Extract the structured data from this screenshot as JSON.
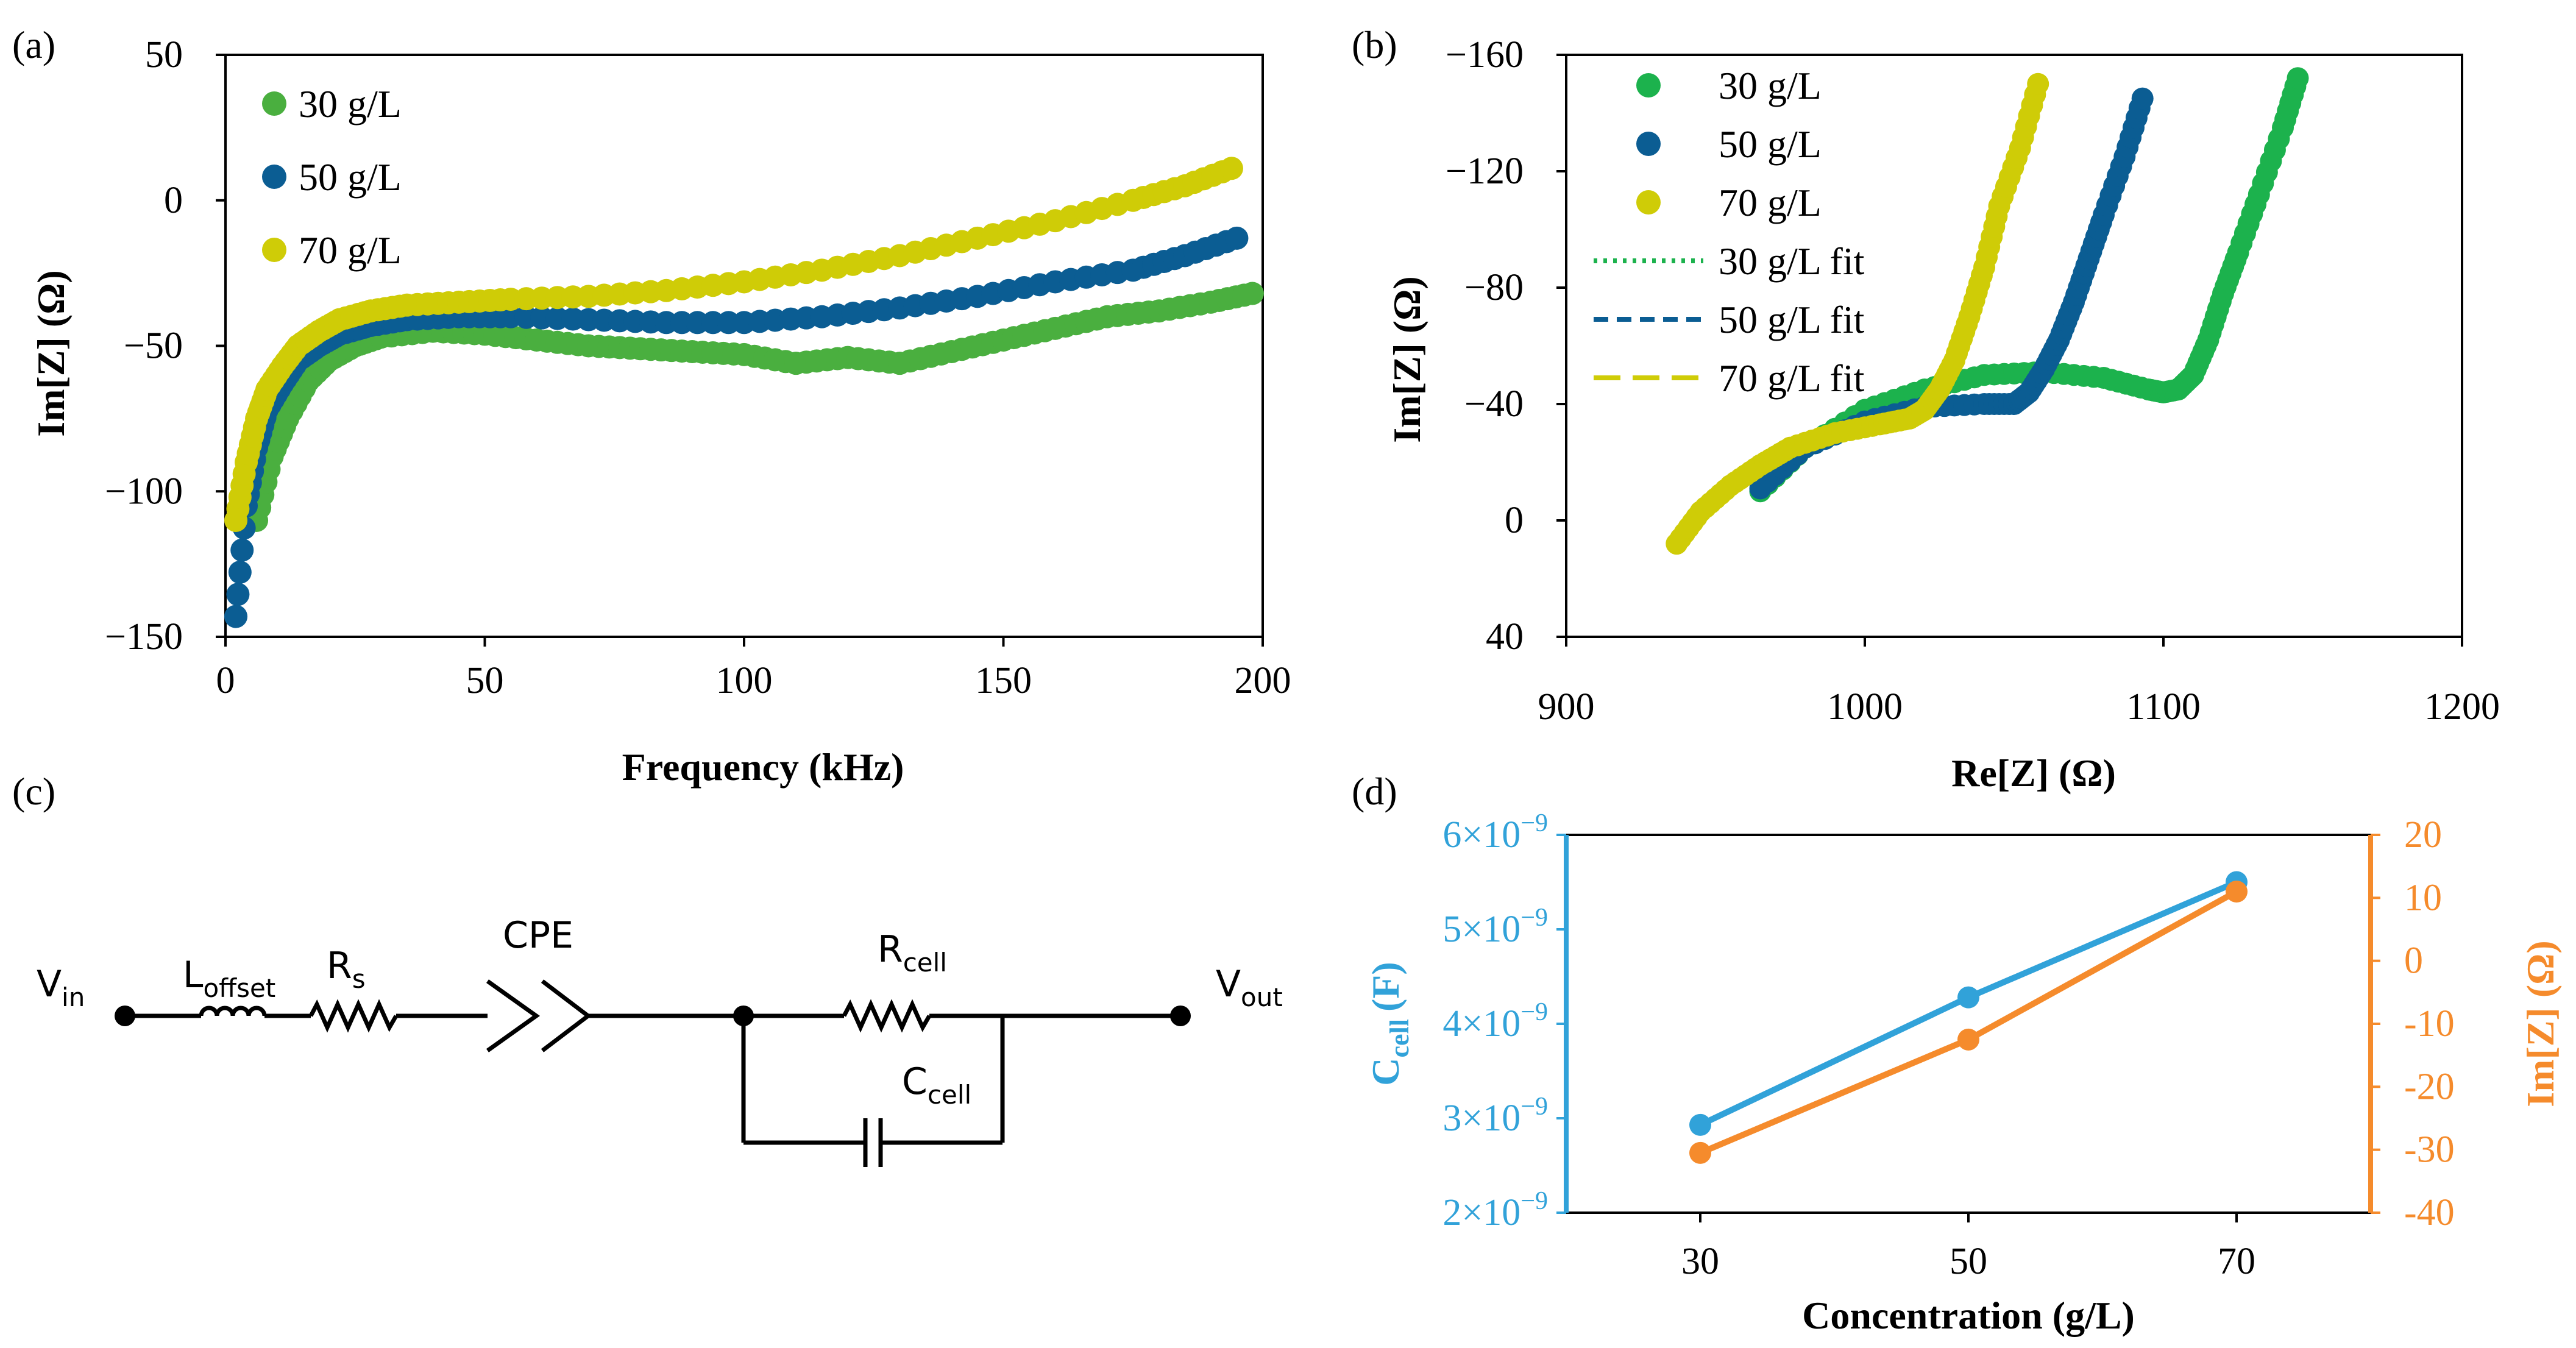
{
  "colors": {
    "green": "#4aaf3f",
    "green_b": "#1cb24d",
    "blue": "#0b5d93",
    "yellow": "#cfcc07",
    "cyan": "#31a2d9",
    "orange": "#f58b2c"
  },
  "panels": {
    "a": {
      "label": "(a)"
    },
    "b": {
      "label": "(b)"
    },
    "c": {
      "label": "(c)"
    },
    "d": {
      "label": "(d)"
    }
  },
  "circuit": {
    "v_in": "V",
    "v_in_sub": "in",
    "l_offset": "L",
    "l_offset_sub": "offset",
    "r_s": "R",
    "r_s_sub": "s",
    "cpe": "CPE",
    "r_cell": "R",
    "r_cell_sub": "cell",
    "c_cell": "C",
    "c_cell_sub": "cell",
    "v_out": "V",
    "v_out_sub": "out"
  },
  "chart_data": [
    {
      "id": "a",
      "type": "scatter",
      "xlabel": "Frequency (kHz)",
      "ylabel": "Im[Z] (Ω)",
      "xlim": [
        0,
        200
      ],
      "ylim": [
        -150,
        50
      ],
      "xticks": [
        "0",
        "50",
        "100",
        "150",
        "200"
      ],
      "yticks": [
        "50",
        "0",
        "−50",
        "−100",
        "−150"
      ],
      "legend_position": "top-left",
      "series": [
        {
          "name": "30 g/L",
          "color": "#4aaf3f",
          "x": [
            3,
            6,
            9,
            12,
            16,
            20,
            25,
            30,
            40,
            50,
            60,
            70,
            80,
            90,
            100,
            110,
            120,
            130,
            140,
            150,
            160,
            170,
            180,
            190,
            198
          ],
          "y": [
            -105,
            -110,
            -88,
            -75,
            -62,
            -55,
            -50,
            -47,
            -45,
            -46,
            -48,
            -50,
            -51,
            -52,
            -53,
            -56,
            -54,
            -56,
            -52,
            -48,
            -44,
            -40,
            -38,
            -35,
            -32
          ]
        },
        {
          "name": "50 g/L",
          "color": "#0b5d93",
          "x": [
            2,
            4,
            6,
            8,
            11,
            14,
            18,
            22,
            28,
            35,
            45,
            55,
            70,
            85,
            100,
            115,
            130,
            145,
            160,
            175,
            185,
            195
          ],
          "y": [
            -143,
            -105,
            -85,
            -72,
            -63,
            -55,
            -50,
            -46,
            -43,
            -41,
            -40,
            -40,
            -41,
            -42,
            -42,
            -40,
            -37,
            -33,
            -28,
            -24,
            -19,
            -13
          ]
        },
        {
          "name": "70 g/L",
          "color": "#cfcc07",
          "x": [
            2,
            4,
            6,
            8,
            11,
            14,
            18,
            22,
            28,
            35,
            45,
            55,
            70,
            85,
            100,
            115,
            130,
            145,
            160,
            175,
            185,
            194
          ],
          "y": [
            -110,
            -90,
            -75,
            -65,
            -57,
            -50,
            -45,
            -41,
            -38,
            -36,
            -35,
            -34,
            -33,
            -31,
            -28,
            -24,
            -19,
            -13,
            -7,
            0,
            5,
            11
          ]
        }
      ]
    },
    {
      "id": "b",
      "type": "scatter",
      "xlabel": "Re[Z] (Ω)",
      "ylabel": "Im[Z] (Ω)",
      "xlim": [
        900,
        1200
      ],
      "ylim": [
        40,
        -160
      ],
      "xticks": [
        "900",
        "1000",
        "1100",
        "1200"
      ],
      "yticks": [
        "−160",
        "−120",
        "−80",
        "−40",
        "0",
        "40"
      ],
      "legend_position": "top-left",
      "series": [
        {
          "name": "30 g/L",
          "color": "#1cb24d",
          "x": [
            965,
            980,
            1000,
            1020,
            1040,
            1060,
            1080,
            1095,
            1100,
            1105,
            1110,
            1115,
            1120,
            1125,
            1132,
            1140,
            1145
          ],
          "y": [
            -10,
            -25,
            -38,
            -45,
            -50,
            -51,
            -49,
            -45,
            -44,
            -45,
            -50,
            -62,
            -78,
            -92,
            -112,
            -135,
            -152
          ]
        },
        {
          "name": "50 g/L",
          "color": "#0b5d93",
          "x": [
            965,
            980,
            1000,
            1020,
            1040,
            1050,
            1055,
            1060,
            1065,
            1070,
            1075,
            1080,
            1087,
            1093
          ],
          "y": [
            -11,
            -25,
            -34,
            -39,
            -40,
            -40,
            -44,
            -52,
            -62,
            -75,
            -90,
            -105,
            -125,
            -145
          ]
        },
        {
          "name": "70 g/L",
          "color": "#cfcc07",
          "x": [
            937,
            945,
            955,
            965,
            975,
            990,
            1005,
            1015,
            1020,
            1025,
            1030,
            1035,
            1040,
            1045,
            1052,
            1058
          ],
          "y": [
            8,
            -3,
            -12,
            -19,
            -25,
            -30,
            -33,
            -35,
            -38,
            -45,
            -55,
            -70,
            -87,
            -108,
            -128,
            -150
          ]
        },
        {
          "name": "30 g/L fit",
          "color": "#1cb24d",
          "style": "dotted",
          "x": [
            1105,
            1115,
            1125,
            1135,
            1145
          ],
          "y": [
            -45,
            -62,
            -90,
            -120,
            -152
          ]
        },
        {
          "name": "50 g/L fit",
          "color": "#0b5d93",
          "style": "dashed",
          "x": [
            1055,
            1065,
            1075,
            1085,
            1093
          ],
          "y": [
            -44,
            -62,
            -90,
            -118,
            -145
          ]
        },
        {
          "name": "70 g/L fit",
          "color": "#cfcc07",
          "style": "longdash",
          "x": [
            1020,
            1030,
            1040,
            1050,
            1058
          ],
          "y": [
            -38,
            -55,
            -87,
            -118,
            -150
          ]
        }
      ]
    },
    {
      "id": "d",
      "type": "line",
      "xlabel": "Concentration (g/L)",
      "ylabel_left": "C",
      "ylabel_left_sub": "cell",
      "ylabel_left_unit": "(F)",
      "ylabel_right": "Im[Z] (Ω)",
      "xlim": [
        20,
        80
      ],
      "ylim_left": [
        2e-09,
        6e-09
      ],
      "ylim_right": [
        -40,
        20
      ],
      "xticks": [
        "30",
        "50",
        "70"
      ],
      "xtick_values": [
        30,
        50,
        70
      ],
      "yticks_left": [
        {
          "base": "6×10",
          "exp": "−9",
          "value": 6e-09
        },
        {
          "base": "5×10",
          "exp": "−9",
          "value": 5e-09
        },
        {
          "base": "4×10",
          "exp": "−9",
          "value": 4e-09
        },
        {
          "base": "3×10",
          "exp": "−9",
          "value": 3e-09
        },
        {
          "base": "2×10",
          "exp": "−9",
          "value": 2e-09
        }
      ],
      "yticks_right": [
        "20",
        "10",
        "0",
        "-10",
        "-20",
        "-30",
        "-40"
      ],
      "series": [
        {
          "name": "C_cell",
          "axis": "left",
          "color": "#31a2d9",
          "x": [
            30,
            50,
            70
          ],
          "values": [
            2.93e-09,
            4.28e-09,
            5.5e-09
          ]
        },
        {
          "name": "Im[Z]",
          "axis": "right",
          "color": "#f58b2c",
          "x": [
            30,
            50,
            70
          ],
          "values": [
            -30.5,
            -12.5,
            11
          ]
        }
      ]
    }
  ]
}
